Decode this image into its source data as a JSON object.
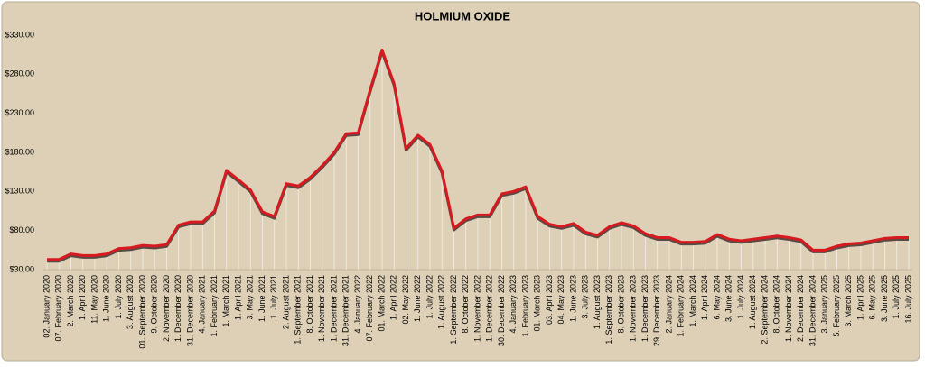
{
  "chart_data": {
    "type": "line",
    "title": "HOLMIUM OXIDE",
    "categories": [
      "02. January 2020",
      "07. February 2020",
      "2. March 2020",
      "1. April 2020",
      "11. May 2020",
      "1. June 2020",
      "1. July 2020",
      "3. August 2020",
      "01. September 2020",
      "9. October 2020",
      "2. November 2020",
      "1. December 2020",
      "31. December 2020",
      "4. January 2021",
      "1. February 2021",
      "1. March 2021",
      "1. April 2021",
      "3. May 2021",
      "1. June 2021",
      "1. July 2021",
      "2. August 2021",
      "1. September 2021",
      "8. October 2021",
      "1. November 2021",
      "1. December 2021",
      "31. December 2021",
      "4. January 2022",
      "07. February 2022",
      "01. March 2022",
      "1. April 2022",
      "02. May 2022",
      "1. June 2022",
      "1. July 2022",
      "1. August 2022",
      "1. September 2022",
      "8. October 2022",
      "1. November 2022",
      "1. December 2022",
      "30. December 2022",
      "4. January 2023",
      "1. February 2023",
      "01. March 2023",
      "03. April 2023",
      "04. May 2023",
      "1. June 2023",
      "3. July 2023",
      "1. August 2023",
      "1. September 2023",
      "8. October 2023",
      "1. November 2023",
      "1. December 2023",
      "29. December 2023",
      "2. January 2024",
      "1. February 2024",
      "1. March 2024",
      "1. April 2024",
      "6. May 2024",
      "3. June 2024",
      "1. July 2024",
      "1. August 2024",
      "2. September 2024",
      "8. October 2024",
      "1. November 2024",
      "2. December 2024",
      "31. December 2024",
      "3. January 2025",
      "5. February 2025",
      "3. March 2025",
      "1. April 2025",
      "6. May 2025",
      "3. June 2025",
      "1. July 2025",
      "16. July 2025"
    ],
    "values": [
      43,
      43,
      50,
      48,
      48,
      50,
      57,
      58,
      61,
      60,
      62,
      87,
      91,
      91,
      105,
      157,
      145,
      132,
      104,
      98,
      140,
      137,
      148,
      163,
      180,
      204,
      205,
      260,
      311,
      268,
      185,
      202,
      190,
      156,
      83,
      95,
      100,
      100,
      127,
      130,
      136,
      98,
      88,
      85,
      89,
      78,
      74,
      85,
      90,
      86,
      76,
      71,
      71,
      65,
      65,
      66,
      75,
      69,
      67,
      69,
      71,
      73,
      71,
      68,
      55,
      55,
      60,
      63,
      64,
      67,
      70,
      71,
      71
    ],
    "color": "#d71920",
    "ylim": [
      30,
      330
    ],
    "yticks": [
      {
        "value": 30,
        "label": "$30.00"
      },
      {
        "value": 80,
        "label": "$80.00"
      },
      {
        "value": 130,
        "label": "$130.00"
      },
      {
        "value": 180,
        "label": "$180.00"
      },
      {
        "value": 230,
        "label": "$230.00"
      },
      {
        "value": 280,
        "label": "$280.00"
      },
      {
        "value": 330,
        "label": "$330.00"
      }
    ],
    "drop_lines": true
  }
}
